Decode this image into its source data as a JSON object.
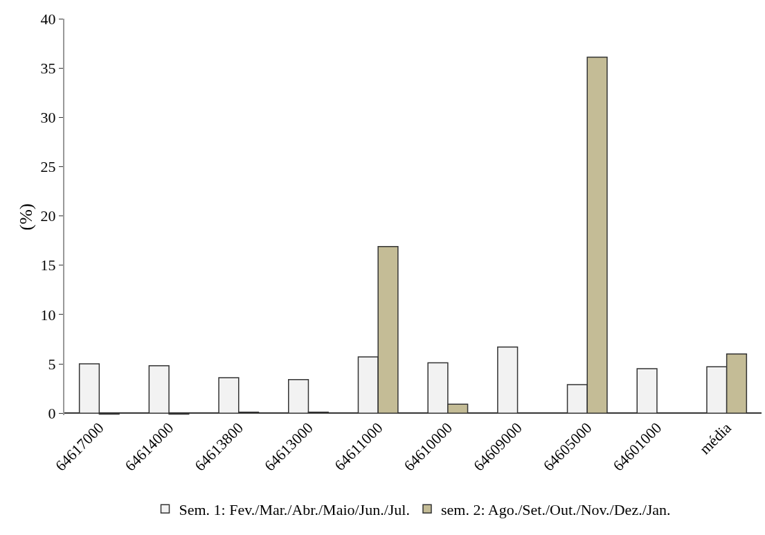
{
  "chart_data": {
    "type": "bar",
    "ylabel": "(%)",
    "categories": [
      "64617000",
      "64614000",
      "64613800",
      "64613000",
      "64611000",
      "64610000",
      "64609000",
      "64605000",
      "64601000",
      "média"
    ],
    "series": [
      {
        "name": "Sem. 1: Fev./Mar./Abr./Maio/Jun./Jul.",
        "color": "#f2f2f2",
        "values": [
          5.0,
          4.8,
          3.6,
          3.4,
          5.7,
          5.1,
          6.7,
          2.9,
          4.5,
          4.7
        ]
      },
      {
        "name": "sem. 2: Ago./Set./Out./Nov./Dez./Jan.",
        "color": "#c4bc96",
        "values": [
          -0.1,
          -0.1,
          0.1,
          0.1,
          16.9,
          0.9,
          null,
          36.1,
          null,
          6.0
        ]
      }
    ],
    "ylim": [
      -0.2,
      40
    ],
    "yticks": [
      0,
      5,
      10,
      15,
      20,
      25,
      30,
      35,
      40
    ],
    "legend": "bottom"
  }
}
